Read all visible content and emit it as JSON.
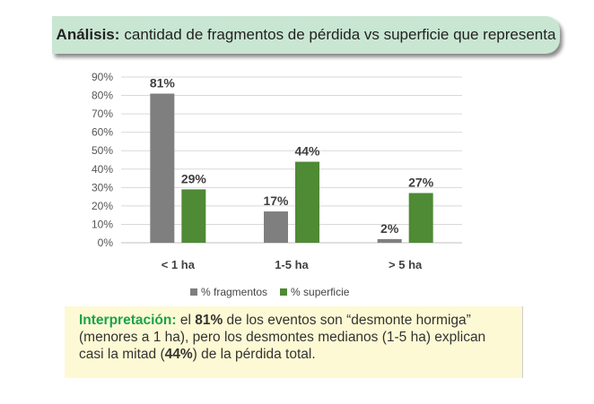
{
  "banner": {
    "bold": "Análisis:",
    "text": "cantidad de fragmentos de pérdida vs superficie que representa"
  },
  "chart_data": {
    "type": "bar",
    "categories": [
      "< 1 ha",
      "1-5 ha",
      "> 5 ha"
    ],
    "series": [
      {
        "name": "% fragmentos",
        "values": [
          81,
          17,
          2
        ],
        "color": "#7f7f7f"
      },
      {
        "name": "% superficie",
        "values": [
          29,
          44,
          27
        ],
        "color": "#4f8a35"
      }
    ],
    "ylim": [
      0,
      90
    ],
    "yticks": [
      "0%",
      "10%",
      "20%",
      "30%",
      "40%",
      "50%",
      "60%",
      "70%",
      "80%",
      "90%"
    ],
    "grid": true,
    "legend": "bottom"
  },
  "interpretation": {
    "label": "Interpretación:",
    "t1": " el ",
    "b1": "81%",
    "t2": " de los eventos son “desmonte hormiga” (menores a 1 ha), pero los desmontes medianos (1-5 ha) explican casi la mitad (",
    "b2": "44%",
    "t3": ") de la pérdida total."
  }
}
